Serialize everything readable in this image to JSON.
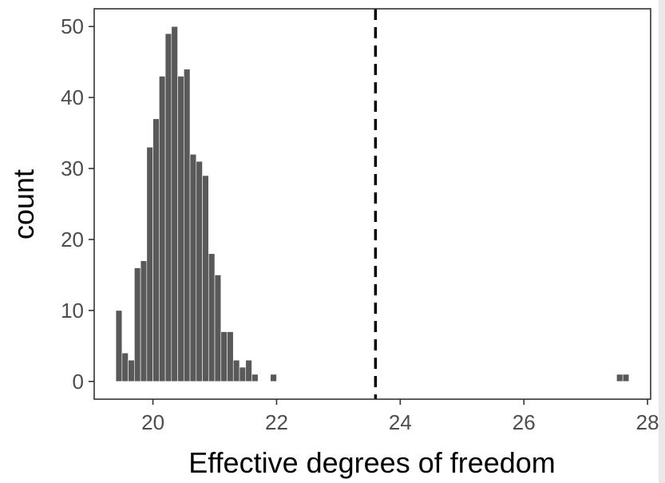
{
  "chart_data": {
    "type": "bar",
    "subtype": "histogram",
    "xlabel": "Effective degrees of freedom",
    "ylabel": "count",
    "xlim": [
      19.05,
      28.05
    ],
    "ylim": [
      -2.5,
      52.5
    ],
    "x_ticks": [
      "20",
      "22",
      "24",
      "26",
      "28"
    ],
    "y_ticks": [
      "0",
      "10",
      "20",
      "30",
      "40",
      "50"
    ],
    "bin_width": 0.1,
    "bins": [
      {
        "x": 19.45,
        "count": 10
      },
      {
        "x": 19.55,
        "count": 4
      },
      {
        "x": 19.65,
        "count": 3
      },
      {
        "x": 19.75,
        "count": 16
      },
      {
        "x": 19.85,
        "count": 17
      },
      {
        "x": 19.95,
        "count": 33
      },
      {
        "x": 20.05,
        "count": 37
      },
      {
        "x": 20.15,
        "count": 43
      },
      {
        "x": 20.25,
        "count": 49
      },
      {
        "x": 20.35,
        "count": 50
      },
      {
        "x": 20.45,
        "count": 43
      },
      {
        "x": 20.55,
        "count": 44
      },
      {
        "x": 20.65,
        "count": 32
      },
      {
        "x": 20.75,
        "count": 31
      },
      {
        "x": 20.85,
        "count": 29
      },
      {
        "x": 20.95,
        "count": 18
      },
      {
        "x": 21.05,
        "count": 15
      },
      {
        "x": 21.15,
        "count": 7
      },
      {
        "x": 21.25,
        "count": 7
      },
      {
        "x": 21.35,
        "count": 3
      },
      {
        "x": 21.45,
        "count": 2
      },
      {
        "x": 21.55,
        "count": 3
      },
      {
        "x": 21.65,
        "count": 1
      },
      {
        "x": 21.95,
        "count": 1
      },
      {
        "x": 27.55,
        "count": 1
      },
      {
        "x": 27.65,
        "count": 1
      }
    ],
    "reference_line": {
      "x": 23.6,
      "style": "dashed",
      "color": "#000000"
    },
    "bar_color": "#595959",
    "bar_edge_color": "#ffffff",
    "grid": false
  }
}
